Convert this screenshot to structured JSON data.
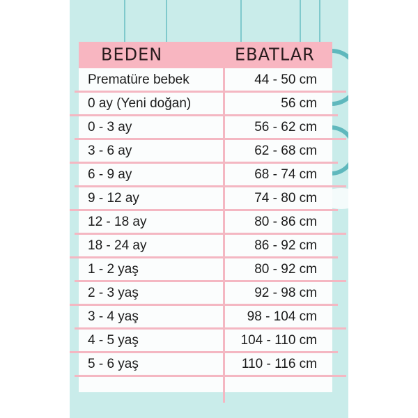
{
  "colors": {
    "background": "#c9ecea",
    "header": "#f8b6c1",
    "lines": "#f4b7c2",
    "card": "#fbfdfd"
  },
  "header": {
    "col1": "BEDEN",
    "col2": "EBATLAR"
  },
  "rows": [
    {
      "size": "Prematüre bebek",
      "measure": "44 - 50 cm"
    },
    {
      "size": "0 ay (Yeni doğan)",
      "measure": "56 cm"
    },
    {
      "size": "0 - 3 ay",
      "measure": "56 - 62 cm"
    },
    {
      "size": "3 - 6 ay",
      "measure": "62 - 68 cm"
    },
    {
      "size": "6 - 9 ay",
      "measure": "68 - 74 cm"
    },
    {
      "size": "9 - 12 ay",
      "measure": "74 - 80 cm"
    },
    {
      "size": "12 - 18 ay",
      "measure": "80 - 86 cm"
    },
    {
      "size": "18 - 24 ay",
      "measure": "86 - 92 cm"
    },
    {
      "size": "1 - 2 yaş",
      "measure": "80 - 92 cm"
    },
    {
      "size": "2 - 3 yaş",
      "measure": "92 - 98 cm"
    },
    {
      "size": "3 - 4 yaş",
      "measure": "98 - 104 cm"
    },
    {
      "size": "4 - 5 yaş",
      "measure": "104 - 110 cm"
    },
    {
      "size": "5 - 6 yaş",
      "measure": "110 - 116 cm"
    }
  ]
}
